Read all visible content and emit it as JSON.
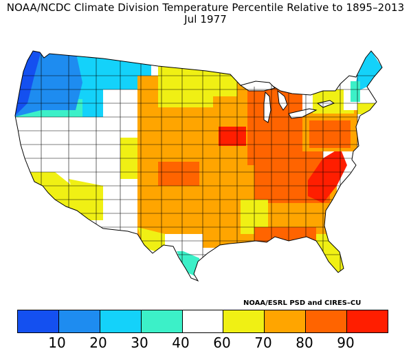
{
  "title": {
    "line1": "NOAA/NCDC Climate Division Temperature Percentile Relative to 1895–2013",
    "line2": "Jul 1977"
  },
  "credit": "NOAA/ESRL PSD and CIRES–CU",
  "legend": {
    "colors": [
      "#1450f0",
      "#1e8cf0",
      "#14d2fa",
      "#3cf0c8",
      "#ffffff",
      "#f0f014",
      "#ffa500",
      "#ff6400",
      "#ff1e00"
    ],
    "ticks": [
      "10",
      "20",
      "30",
      "40",
      "60",
      "70",
      "80",
      "90"
    ]
  },
  "palette": {
    "dark_blue": "#1450f0",
    "blue": "#1e8cf0",
    "cyan": "#14d2fa",
    "teal": "#3cf0c8",
    "white": "#ffffff",
    "yellow": "#f0f014",
    "orange": "#ffa500",
    "dark_orange": "#ff6400",
    "red": "#ff1e00"
  }
}
